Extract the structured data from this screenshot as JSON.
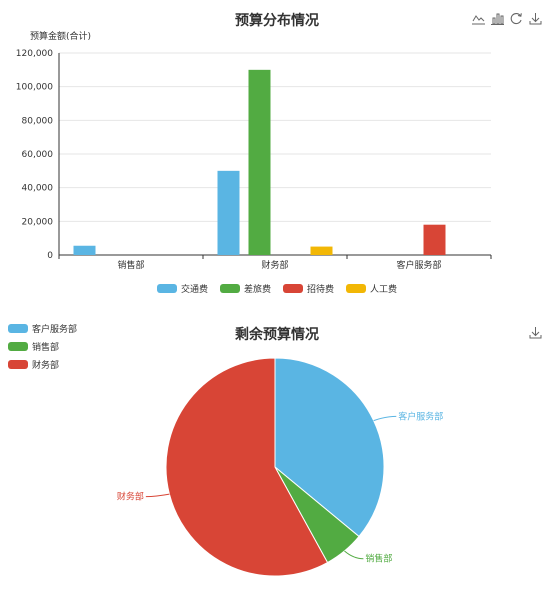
{
  "bar_chart": {
    "title": "预算分布情况",
    "toolbox": {
      "line_icon": "line-chart-icon",
      "bar_icon": "bar-chart-icon",
      "restore_icon": "refresh-icon",
      "save_icon": "download-icon"
    }
  },
  "pie_chart": {
    "title": "剩余预算情况",
    "toolbox": {
      "save_icon": "download-icon"
    }
  },
  "colors": {
    "交通费": "#5ab5e3",
    "差旅费": "#52ab42",
    "招待费": "#d84536",
    "人工费": "#f2b705",
    "客户服务部": "#5ab5e3",
    "销售部": "#52ab42",
    "财务部": "#d84536"
  },
  "chart_data": [
    {
      "type": "bar",
      "title": "预算分布情况",
      "ylabel": "预算金额(合计)",
      "xlabel": "",
      "categories": [
        "销售部",
        "财务部",
        "客户服务部"
      ],
      "series": [
        {
          "name": "交通费",
          "values": [
            5500,
            50000,
            0
          ]
        },
        {
          "name": "差旅费",
          "values": [
            0,
            110000,
            0
          ]
        },
        {
          "name": "招待费",
          "values": [
            0,
            0,
            18000
          ]
        },
        {
          "name": "人工费",
          "values": [
            0,
            5000,
            0
          ]
        }
      ],
      "ylim": [
        0,
        120000
      ],
      "yticks": [
        "0",
        "20,000",
        "40,000",
        "60,000",
        "80,000",
        "100,000",
        "120,000"
      ],
      "grid": true,
      "legend_position": "bottom"
    },
    {
      "type": "pie",
      "title": "剩余预算情况",
      "labels": [
        "客户服务部",
        "销售部",
        "财务部"
      ],
      "values": [
        36,
        6,
        58
      ],
      "legend_position": "top-left"
    }
  ]
}
